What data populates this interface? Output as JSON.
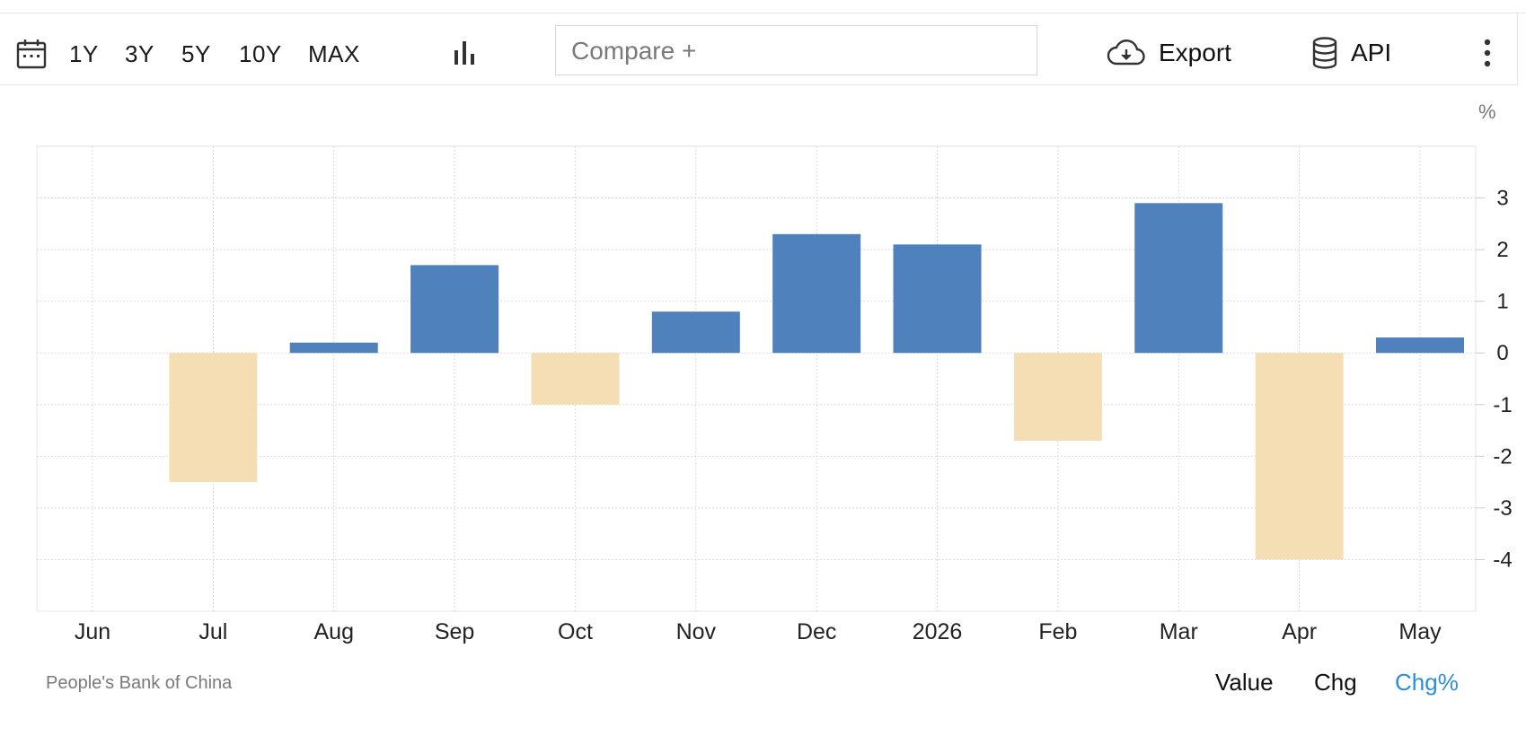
{
  "toolbar": {
    "ranges": [
      "1Y",
      "3Y",
      "5Y",
      "10Y",
      "MAX"
    ],
    "compare_placeholder": "Compare +",
    "export_label": "Export",
    "api_label": "API"
  },
  "chart_data": {
    "type": "bar",
    "unit_label": "%",
    "categories": [
      "Jun",
      "Jul",
      "Aug",
      "Sep",
      "Oct",
      "Nov",
      "Dec",
      "2026",
      "Feb",
      "Mar",
      "Apr",
      "May"
    ],
    "values": [
      null,
      -2.5,
      0.2,
      1.7,
      -1.0,
      0.8,
      2.3,
      2.1,
      -1.7,
      2.9,
      -4.0,
      0.3
    ],
    "yticks": [
      3,
      2,
      1,
      0,
      -1,
      -2,
      -3,
      -4
    ],
    "ylim": [
      -5,
      4
    ],
    "grid": true,
    "y_axis_side": "right",
    "colors": {
      "positive": "#4f81bd",
      "negative": "#f5deb3"
    }
  },
  "footer": {
    "source": "People's Bank of China",
    "views": [
      "Value",
      "Chg",
      "Chg%"
    ],
    "active_view": "Chg%",
    "active_color": "#2a8fe0"
  }
}
